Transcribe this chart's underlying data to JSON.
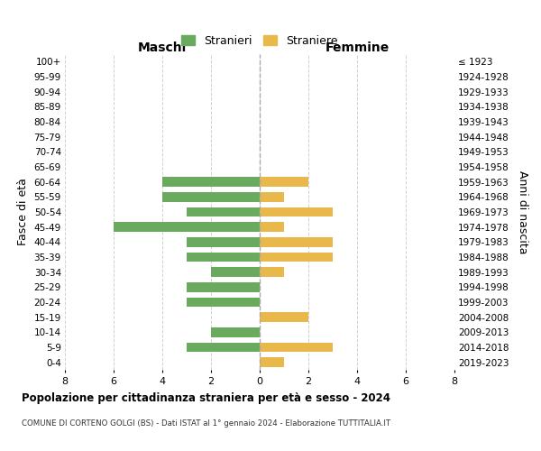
{
  "age_groups": [
    "100+",
    "95-99",
    "90-94",
    "85-89",
    "80-84",
    "75-79",
    "70-74",
    "65-69",
    "60-64",
    "55-59",
    "50-54",
    "45-49",
    "40-44",
    "35-39",
    "30-34",
    "25-29",
    "20-24",
    "15-19",
    "10-14",
    "5-9",
    "0-4"
  ],
  "birth_years": [
    "≤ 1923",
    "1924-1928",
    "1929-1933",
    "1934-1938",
    "1939-1943",
    "1944-1948",
    "1949-1953",
    "1954-1958",
    "1959-1963",
    "1964-1968",
    "1969-1973",
    "1974-1978",
    "1979-1983",
    "1984-1988",
    "1989-1993",
    "1994-1998",
    "1999-2003",
    "2004-2008",
    "2009-2013",
    "2014-2018",
    "2019-2023"
  ],
  "males": [
    0,
    0,
    0,
    0,
    0,
    0,
    0,
    0,
    4,
    4,
    3,
    6,
    3,
    3,
    2,
    3,
    3,
    0,
    2,
    3,
    0
  ],
  "females": [
    0,
    0,
    0,
    0,
    0,
    0,
    0,
    0,
    2,
    1,
    3,
    1,
    3,
    3,
    1,
    0,
    0,
    2,
    0,
    3,
    1
  ],
  "male_color": "#6aaa5e",
  "female_color": "#e8b84b",
  "title": "Popolazione per cittadinanza straniera per età e sesso - 2024",
  "subtitle": "COMUNE DI CORTENO GOLGI (BS) - Dati ISTAT al 1° gennaio 2024 - Elaborazione TUTTITALIA.IT",
  "ylabel_left": "Fasce di età",
  "ylabel_right": "Anni di nascita",
  "xlabel_left": "Maschi",
  "xlabel_top_right": "Femmine",
  "legend_male": "Stranieri",
  "legend_female": "Straniere",
  "xlim": 8,
  "background_color": "#ffffff",
  "grid_color": "#cccccc"
}
